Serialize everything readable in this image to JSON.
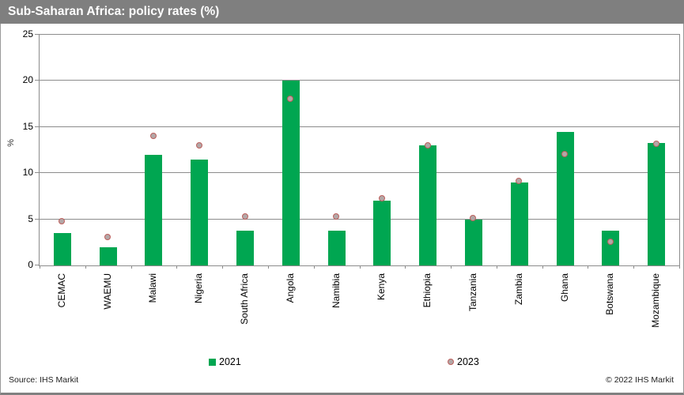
{
  "header": {
    "title": "Sub-Saharan Africa: policy rates (%)"
  },
  "footer": {
    "source": "Source: IHS Markit",
    "copyright": "© 2022  IHS Markit"
  },
  "colors": {
    "bar_green": "#00a651",
    "dot_fill": "#b3a7a7",
    "dot_border": "#bd5f5c",
    "header_gray": "#7f7f7f",
    "grid_gray": "#8c8c8c"
  },
  "chart_data": {
    "type": "bar",
    "title": "Sub-Saharan Africa: policy rates (%)",
    "xlabel": "",
    "ylabel": "%",
    "ylim": [
      0,
      25
    ],
    "yticks": [
      0,
      5,
      10,
      15,
      20,
      25
    ],
    "grid": true,
    "legend_position": "bottom",
    "categories": [
      "CEMAC",
      "WAEMU",
      "Malawi",
      "Nigeria",
      "South Africa",
      "Angola",
      "Namibia",
      "Kenya",
      "Ethiopia",
      "Tanzania",
      "Zambia",
      "Ghana",
      "Botswana",
      "Mozambique"
    ],
    "series": [
      {
        "name": "2021",
        "type": "bar",
        "color": "#00a651",
        "values": [
          3.5,
          2.0,
          12.0,
          11.5,
          3.75,
          20.0,
          3.75,
          7.0,
          13.0,
          5.0,
          9.0,
          14.5,
          3.75,
          13.25
        ]
      },
      {
        "name": "2023",
        "type": "point",
        "fill": "#b3a7a7",
        "border": "#bd5f5c",
        "values": [
          4.75,
          3.0,
          14.0,
          13.0,
          5.25,
          18.0,
          5.25,
          7.25,
          13.0,
          5.1,
          9.1,
          12.0,
          2.5,
          13.1
        ]
      }
    ]
  }
}
